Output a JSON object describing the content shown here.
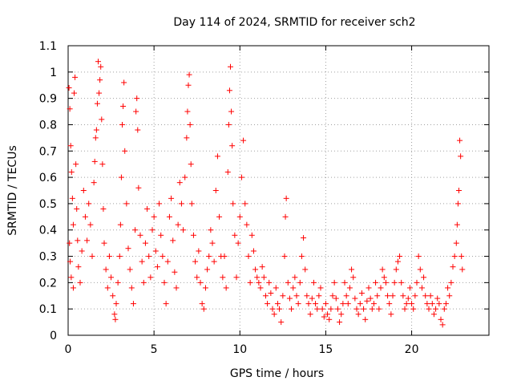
{
  "chart_data": {
    "type": "scatter",
    "title": "Day 114 of 2024, SRMTID for receiver sch2",
    "xlabel": "GPS time / hours",
    "ylabel": "SRMTID / TECUs",
    "xlim": [
      0,
      24.5
    ],
    "ylim": [
      0,
      1.1
    ],
    "xticks": [
      0,
      5,
      10,
      15,
      20
    ],
    "xtick_labels": [
      "0",
      "5",
      "10",
      "15",
      "20"
    ],
    "yticks": [
      0,
      0.1,
      0.2,
      0.3,
      0.4,
      0.5,
      0.6,
      0.7,
      0.8,
      0.9,
      1.0,
      1.1
    ],
    "ytick_labels": [
      "0",
      "0.1",
      "0.2",
      "0.3",
      "0.4",
      "0.5",
      "0.6",
      "0.7",
      "0.8",
      "0.9",
      "1",
      "1.1"
    ],
    "grid": true,
    "marker": "+",
    "color": "#ff0000",
    "series": [
      {
        "name": "sch2",
        "points": [
          [
            0.05,
            0.94
          ],
          [
            0.1,
            0.86
          ],
          [
            0.15,
            0.72
          ],
          [
            0.2,
            0.62
          ],
          [
            0.25,
            0.52
          ],
          [
            0.3,
            0.42
          ],
          [
            0.08,
            0.35
          ],
          [
            0.12,
            0.28
          ],
          [
            0.18,
            0.22
          ],
          [
            0.3,
            0.18
          ],
          [
            0.35,
            0.92
          ],
          [
            0.4,
            0.98
          ],
          [
            0.45,
            0.65
          ],
          [
            0.5,
            0.48
          ],
          [
            0.55,
            0.36
          ],
          [
            0.6,
            0.26
          ],
          [
            0.7,
            0.2
          ],
          [
            0.8,
            0.32
          ],
          [
            0.9,
            0.55
          ],
          [
            1.0,
            0.45
          ],
          [
            1.1,
            0.36
          ],
          [
            1.2,
            0.5
          ],
          [
            1.3,
            0.42
          ],
          [
            1.4,
            0.3
          ],
          [
            1.5,
            0.58
          ],
          [
            1.55,
            0.66
          ],
          [
            1.6,
            0.75
          ],
          [
            1.65,
            0.78
          ],
          [
            1.7,
            0.88
          ],
          [
            1.75,
            1.04
          ],
          [
            1.8,
            0.92
          ],
          [
            1.85,
            0.97
          ],
          [
            1.9,
            1.02
          ],
          [
            1.95,
            0.82
          ],
          [
            2.0,
            0.65
          ],
          [
            2.05,
            0.48
          ],
          [
            2.1,
            0.35
          ],
          [
            2.2,
            0.25
          ],
          [
            2.3,
            0.18
          ],
          [
            2.4,
            0.3
          ],
          [
            2.5,
            0.22
          ],
          [
            2.6,
            0.15
          ],
          [
            2.7,
            0.08
          ],
          [
            2.75,
            0.06
          ],
          [
            2.8,
            0.12
          ],
          [
            2.9,
            0.2
          ],
          [
            3.0,
            0.3
          ],
          [
            3.05,
            0.42
          ],
          [
            3.1,
            0.6
          ],
          [
            3.15,
            0.8
          ],
          [
            3.2,
            0.87
          ],
          [
            3.25,
            0.96
          ],
          [
            3.3,
            0.7
          ],
          [
            3.4,
            0.5
          ],
          [
            3.5,
            0.33
          ],
          [
            3.6,
            0.25
          ],
          [
            3.7,
            0.18
          ],
          [
            3.8,
            0.12
          ],
          [
            3.9,
            0.4
          ],
          [
            3.95,
            0.85
          ],
          [
            4.0,
            0.9
          ],
          [
            4.05,
            0.78
          ],
          [
            4.1,
            0.56
          ],
          [
            4.2,
            0.38
          ],
          [
            4.3,
            0.28
          ],
          [
            4.4,
            0.2
          ],
          [
            4.5,
            0.35
          ],
          [
            4.6,
            0.48
          ],
          [
            4.7,
            0.3
          ],
          [
            4.8,
            0.22
          ],
          [
            4.9,
            0.4
          ],
          [
            5.0,
            0.45
          ],
          [
            5.1,
            0.32
          ],
          [
            5.2,
            0.26
          ],
          [
            5.3,
            0.5
          ],
          [
            5.4,
            0.38
          ],
          [
            5.5,
            0.3
          ],
          [
            5.6,
            0.2
          ],
          [
            5.7,
            0.12
          ],
          [
            5.8,
            0.28
          ],
          [
            5.9,
            0.45
          ],
          [
            6.0,
            0.52
          ],
          [
            6.1,
            0.36
          ],
          [
            6.2,
            0.24
          ],
          [
            6.3,
            0.18
          ],
          [
            6.4,
            0.42
          ],
          [
            6.5,
            0.58
          ],
          [
            6.6,
            0.5
          ],
          [
            6.7,
            0.4
          ],
          [
            6.8,
            0.6
          ],
          [
            6.9,
            0.75
          ],
          [
            6.95,
            0.85
          ],
          [
            7.0,
            0.95
          ],
          [
            7.05,
            0.99
          ],
          [
            7.1,
            0.8
          ],
          [
            7.15,
            0.65
          ],
          [
            7.2,
            0.5
          ],
          [
            7.3,
            0.38
          ],
          [
            7.4,
            0.28
          ],
          [
            7.5,
            0.22
          ],
          [
            7.6,
            0.32
          ],
          [
            7.7,
            0.2
          ],
          [
            7.8,
            0.12
          ],
          [
            7.9,
            0.1
          ],
          [
            8.0,
            0.18
          ],
          [
            8.1,
            0.25
          ],
          [
            8.2,
            0.3
          ],
          [
            8.3,
            0.4
          ],
          [
            8.4,
            0.35
          ],
          [
            8.5,
            0.28
          ],
          [
            8.6,
            0.55
          ],
          [
            8.7,
            0.68
          ],
          [
            8.8,
            0.45
          ],
          [
            8.9,
            0.3
          ],
          [
            9.0,
            0.22
          ],
          [
            9.1,
            0.3
          ],
          [
            9.2,
            0.18
          ],
          [
            9.3,
            0.62
          ],
          [
            9.35,
            0.8
          ],
          [
            9.4,
            0.93
          ],
          [
            9.45,
            1.02
          ],
          [
            9.5,
            0.85
          ],
          [
            9.55,
            0.72
          ],
          [
            9.6,
            0.5
          ],
          [
            9.7,
            0.38
          ],
          [
            9.8,
            0.22
          ],
          [
            9.9,
            0.35
          ],
          [
            10.0,
            0.45
          ],
          [
            10.1,
            0.6
          ],
          [
            10.2,
            0.74
          ],
          [
            10.3,
            0.5
          ],
          [
            10.4,
            0.42
          ],
          [
            10.5,
            0.3
          ],
          [
            10.6,
            0.2
          ],
          [
            10.7,
            0.38
          ],
          [
            10.8,
            0.32
          ],
          [
            10.9,
            0.25
          ],
          [
            11.0,
            0.22
          ],
          [
            11.1,
            0.2
          ],
          [
            11.2,
            0.18
          ],
          [
            11.3,
            0.26
          ],
          [
            11.4,
            0.22
          ],
          [
            11.5,
            0.15
          ],
          [
            11.6,
            0.12
          ],
          [
            11.7,
            0.2
          ],
          [
            11.8,
            0.16
          ],
          [
            11.9,
            0.1
          ],
          [
            12.0,
            0.08
          ],
          [
            12.1,
            0.18
          ],
          [
            12.2,
            0.12
          ],
          [
            12.3,
            0.1
          ],
          [
            12.4,
            0.05
          ],
          [
            12.5,
            0.15
          ],
          [
            12.6,
            0.3
          ],
          [
            12.65,
            0.45
          ],
          [
            12.7,
            0.52
          ],
          [
            12.8,
            0.2
          ],
          [
            12.9,
            0.14
          ],
          [
            13.0,
            0.1
          ],
          [
            13.1,
            0.18
          ],
          [
            13.2,
            0.22
          ],
          [
            13.3,
            0.15
          ],
          [
            13.4,
            0.12
          ],
          [
            13.5,
            0.2
          ],
          [
            13.6,
            0.3
          ],
          [
            13.7,
            0.37
          ],
          [
            13.8,
            0.25
          ],
          [
            13.9,
            0.15
          ],
          [
            14.0,
            0.12
          ],
          [
            14.1,
            0.08
          ],
          [
            14.2,
            0.14
          ],
          [
            14.3,
            0.2
          ],
          [
            14.4,
            0.12
          ],
          [
            14.5,
            0.1
          ],
          [
            14.6,
            0.15
          ],
          [
            14.7,
            0.18
          ],
          [
            14.8,
            0.1
          ],
          [
            14.9,
            0.07
          ],
          [
            15.0,
            0.12
          ],
          [
            15.1,
            0.08
          ],
          [
            15.2,
            0.06
          ],
          [
            15.3,
            0.1
          ],
          [
            15.4,
            0.15
          ],
          [
            15.5,
            0.2
          ],
          [
            15.6,
            0.14
          ],
          [
            15.7,
            0.1
          ],
          [
            15.8,
            0.05
          ],
          [
            15.9,
            0.08
          ],
          [
            16.0,
            0.12
          ],
          [
            16.1,
            0.2
          ],
          [
            16.2,
            0.15
          ],
          [
            16.3,
            0.12
          ],
          [
            16.4,
            0.18
          ],
          [
            16.5,
            0.25
          ],
          [
            16.6,
            0.22
          ],
          [
            16.7,
            0.14
          ],
          [
            16.8,
            0.1
          ],
          [
            16.9,
            0.08
          ],
          [
            17.0,
            0.12
          ],
          [
            17.1,
            0.16
          ],
          [
            17.2,
            0.1
          ],
          [
            17.3,
            0.06
          ],
          [
            17.4,
            0.13
          ],
          [
            17.5,
            0.18
          ],
          [
            17.6,
            0.14
          ],
          [
            17.7,
            0.1
          ],
          [
            17.8,
            0.12
          ],
          [
            17.9,
            0.2
          ],
          [
            18.0,
            0.15
          ],
          [
            18.1,
            0.1
          ],
          [
            18.2,
            0.18
          ],
          [
            18.3,
            0.25
          ],
          [
            18.4,
            0.22
          ],
          [
            18.5,
            0.2
          ],
          [
            18.6,
            0.15
          ],
          [
            18.7,
            0.12
          ],
          [
            18.8,
            0.08
          ],
          [
            18.9,
            0.15
          ],
          [
            19.0,
            0.2
          ],
          [
            19.1,
            0.25
          ],
          [
            19.2,
            0.28
          ],
          [
            19.3,
            0.3
          ],
          [
            19.4,
            0.2
          ],
          [
            19.5,
            0.15
          ],
          [
            19.6,
            0.1
          ],
          [
            19.7,
            0.12
          ],
          [
            19.8,
            0.14
          ],
          [
            19.9,
            0.18
          ],
          [
            20.0,
            0.12
          ],
          [
            20.1,
            0.1
          ],
          [
            20.2,
            0.15
          ],
          [
            20.3,
            0.2
          ],
          [
            20.4,
            0.3
          ],
          [
            20.5,
            0.25
          ],
          [
            20.6,
            0.18
          ],
          [
            20.7,
            0.22
          ],
          [
            20.8,
            0.15
          ],
          [
            20.9,
            0.12
          ],
          [
            21.0,
            0.1
          ],
          [
            21.1,
            0.15
          ],
          [
            21.2,
            0.12
          ],
          [
            21.3,
            0.08
          ],
          [
            21.4,
            0.1
          ],
          [
            21.5,
            0.14
          ],
          [
            21.6,
            0.12
          ],
          [
            21.7,
            0.06
          ],
          [
            21.8,
            0.04
          ],
          [
            21.9,
            0.1
          ],
          [
            22.0,
            0.12
          ],
          [
            22.1,
            0.18
          ],
          [
            22.2,
            0.15
          ],
          [
            22.3,
            0.2
          ],
          [
            22.4,
            0.26
          ],
          [
            22.5,
            0.3
          ],
          [
            22.6,
            0.35
          ],
          [
            22.65,
            0.42
          ],
          [
            22.7,
            0.5
          ],
          [
            22.75,
            0.55
          ],
          [
            22.8,
            0.74
          ],
          [
            22.85,
            0.68
          ],
          [
            22.9,
            0.3
          ],
          [
            22.95,
            0.25
          ]
        ]
      }
    ]
  }
}
